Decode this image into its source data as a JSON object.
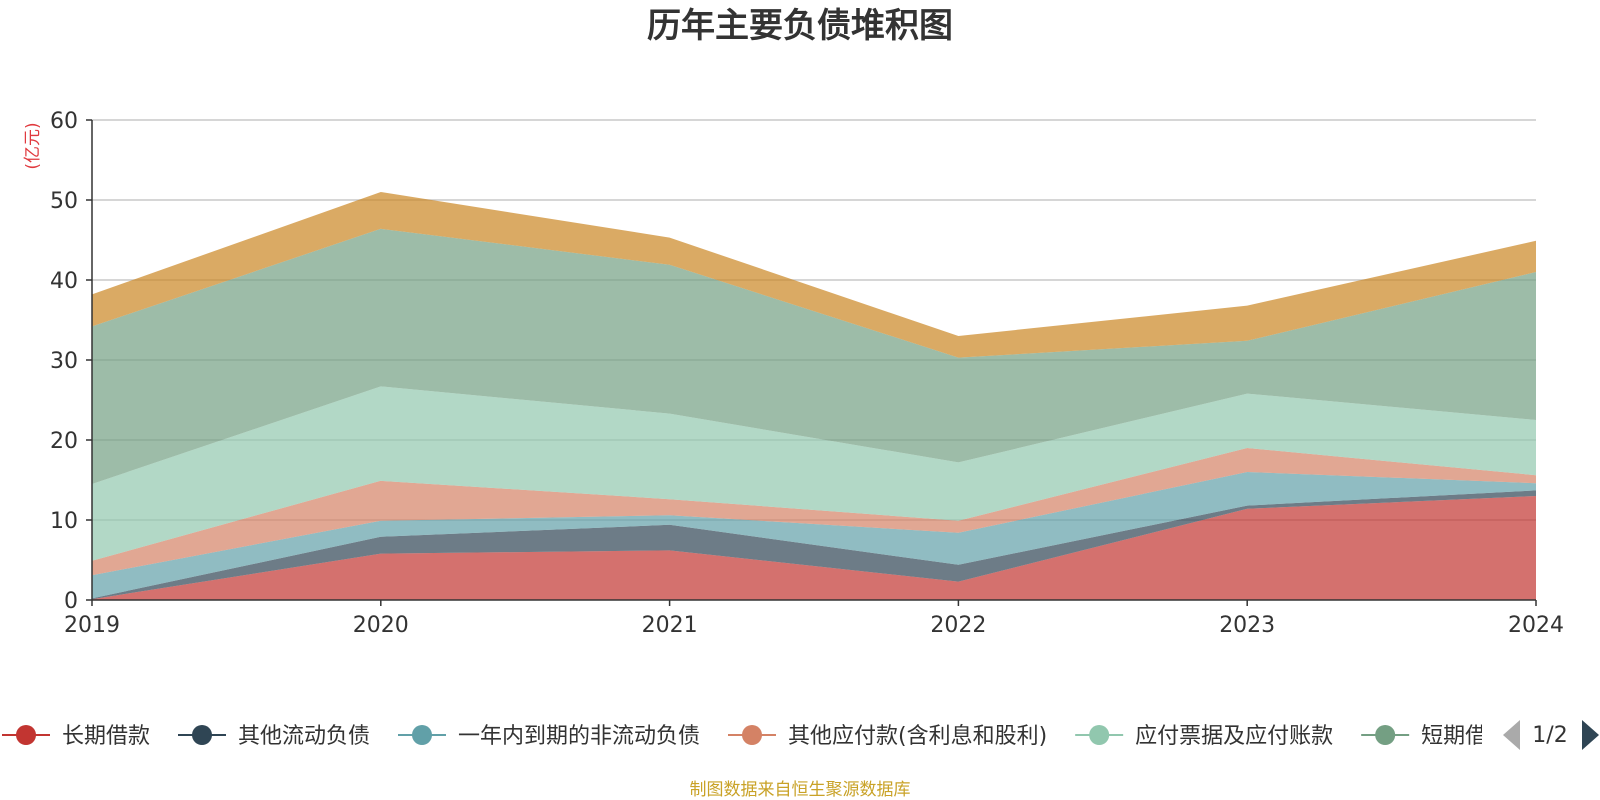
{
  "chart_data": {
    "type": "area",
    "title": "历年主要负债堆积图",
    "unit_label": "(亿元)",
    "x": [
      "2019",
      "2020",
      "2021",
      "2022",
      "2023",
      "2024"
    ],
    "ylim": [
      0,
      60
    ],
    "y_ticks": [
      "0",
      "10",
      "20",
      "30",
      "40",
      "50",
      "60"
    ],
    "grid": true,
    "stacked": true,
    "series": [
      {
        "name": "长期借款",
        "color": "#c23531",
        "values": [
          0.1,
          5.8,
          6.2,
          2.3,
          11.4,
          13.0
        ]
      },
      {
        "name": "其他流动负债",
        "color": "#2f4554",
        "values": [
          0.1,
          2.1,
          3.2,
          2.1,
          0.4,
          0.7
        ]
      },
      {
        "name": "一年内到期的非流动负债",
        "color": "#61a0a8",
        "values": [
          2.9,
          2.0,
          1.2,
          4.0,
          4.2,
          0.9
        ]
      },
      {
        "name": "其他应付款(含利息和股利)",
        "color": "#d48265",
        "values": [
          1.8,
          5.0,
          2.0,
          1.5,
          3.0,
          1.0
        ]
      },
      {
        "name": "应付票据及应付账款",
        "color": "#91c7ae",
        "values": [
          9.6,
          11.8,
          10.7,
          7.3,
          6.8,
          6.9
        ]
      },
      {
        "name": "短期借款",
        "color": "#749f83",
        "values": [
          19.7,
          19.7,
          18.6,
          13.1,
          6.6,
          18.5
        ]
      },
      {
        "name": "",
        "color": "#ca8622",
        "values": [
          4.0,
          4.6,
          3.4,
          2.7,
          4.4,
          3.9
        ]
      }
    ],
    "legend_position": "bottom",
    "legend_page": "1/2"
  },
  "footer": {
    "source": "制图数据来自恒生聚源数据库"
  }
}
